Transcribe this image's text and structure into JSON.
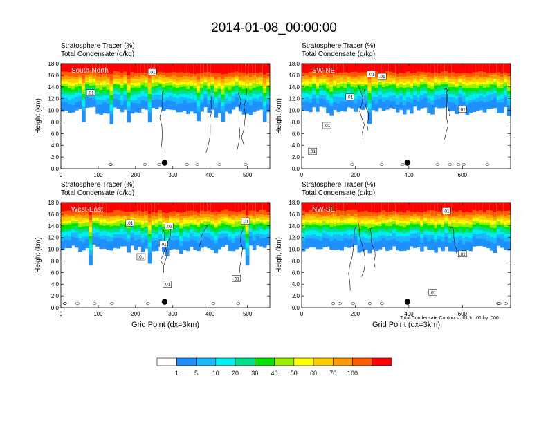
{
  "figure_title": "2014-01-08_00:00:00",
  "colorbar": {
    "ticks": [
      "1",
      "5",
      "10",
      "20",
      "30",
      "40",
      "50",
      "60",
      "70",
      "100"
    ],
    "colors": [
      "#ffffff",
      "#1e90ff",
      "#1ab8ff",
      "#00f0f0",
      "#00e08c",
      "#00e600",
      "#9af000",
      "#ffff00",
      "#ffcc00",
      "#ff9900",
      "#ff5a00",
      "#ff0000"
    ]
  },
  "footnote": "Total Condensate Contours: .01 to .01 by .000",
  "chart_data": [
    {
      "type": "heatmap",
      "line1": "Stratosphere Tracer   (%)",
      "line2": "Total Condensate   (g/kg)",
      "section": "South-North",
      "ylabel": "Height (km)",
      "xlabel": "",
      "xlim": [
        0,
        560
      ],
      "ylim": [
        0,
        18
      ],
      "xticks": [
        0,
        100,
        200,
        300,
        400,
        500
      ],
      "yticks": [
        "0.0",
        "2.0",
        "4.0",
        "6.0",
        "8.0",
        "10.0",
        "12.0",
        "14.0",
        "16.0",
        "18.0"
      ],
      "contour_labels": [
        {
          "x": 245,
          "y": 16.6,
          "text": ".01"
        },
        {
          "x": 80,
          "y": 13.0,
          "text": ".01"
        }
      ],
      "marker": {
        "x": 278,
        "y": 1.0
      }
    },
    {
      "type": "heatmap",
      "line1": "Stratosphere Tracer   (%)",
      "line2": "Total Condensate   (g/kg)",
      "section": "SW-NE",
      "ylabel": "Height (km)",
      "xlabel": "",
      "xlim": [
        0,
        780
      ],
      "ylim": [
        0,
        18
      ],
      "xticks": [
        0,
        200,
        400,
        600
      ],
      "yticks": [
        "0.0",
        "2.0",
        "4.0",
        "6.0",
        "8.0",
        "10.0",
        "12.0",
        "14.0",
        "16.0",
        "18.0"
      ],
      "contour_labels": [
        {
          "x": 260,
          "y": 16.2,
          "text": ".01"
        },
        {
          "x": 300,
          "y": 15.8,
          "text": ".01"
        },
        {
          "x": 180,
          "y": 12.3,
          "text": ".01"
        },
        {
          "x": 95,
          "y": 7.4,
          "text": ".01"
        },
        {
          "x": 40,
          "y": 3.0,
          "text": ".01"
        },
        {
          "x": 600,
          "y": 10.2,
          "text": ".01"
        }
      ],
      "marker": {
        "x": 395,
        "y": 1.0
      }
    },
    {
      "type": "heatmap",
      "line1": "Stratosphere Tracer   (%)",
      "line2": "Total Condensate   (g/kg)",
      "section": "West-East",
      "ylabel": "Height (km)",
      "xlabel": "Grid Point (dx=3km)",
      "xlim": [
        0,
        560
      ],
      "ylim": [
        0,
        18
      ],
      "xticks": [
        0,
        100,
        200,
        300,
        400,
        500
      ],
      "yticks": [
        "0.0",
        "2.0",
        "4.0",
        "6.0",
        "8.0",
        "10.0",
        "12.0",
        "14.0",
        "16.0",
        "18.0"
      ],
      "contour_labels": [
        {
          "x": 185,
          "y": 14.5,
          "text": ".01"
        },
        {
          "x": 290,
          "y": 14.0,
          "text": ".01"
        },
        {
          "x": 495,
          "y": 14.8,
          "text": ".01"
        },
        {
          "x": 275,
          "y": 10.9,
          "text": ".01"
        },
        {
          "x": 215,
          "y": 8.7,
          "text": ".01"
        },
        {
          "x": 285,
          "y": 4.0,
          "text": ".01"
        },
        {
          "x": 470,
          "y": 5.0,
          "text": ".01"
        }
      ],
      "marker": {
        "x": 278,
        "y": 1.0
      }
    },
    {
      "type": "heatmap",
      "line1": "Stratosphere Tracer   (%)",
      "line2": "Total Condensate   (g/kg)",
      "section": "NW-SE",
      "ylabel": "Height (km)",
      "xlabel": "Grid Point (dx=3km)",
      "xlim": [
        0,
        780
      ],
      "ylim": [
        0,
        18
      ],
      "xticks": [
        0,
        200,
        400,
        600
      ],
      "yticks": [
        "0.0",
        "2.0",
        "4.0",
        "6.0",
        "8.0",
        "10.0",
        "12.0",
        "14.0",
        "16.0",
        "18.0"
      ],
      "contour_labels": [
        {
          "x": 540,
          "y": 16.6,
          "text": ".01"
        },
        {
          "x": 600,
          "y": 9.2,
          "text": ".01"
        },
        {
          "x": 490,
          "y": 2.6,
          "text": ".01"
        }
      ],
      "marker": {
        "x": 395,
        "y": 1.0
      }
    }
  ]
}
